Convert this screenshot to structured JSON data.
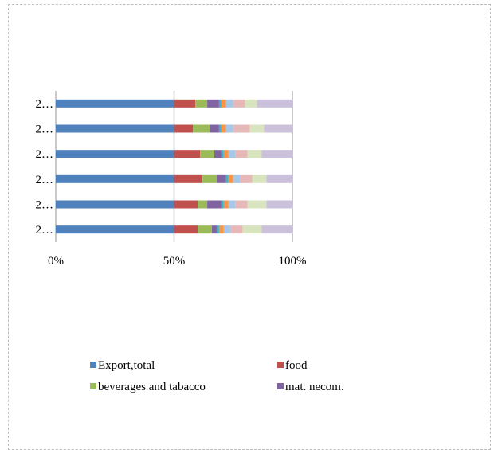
{
  "chart_data": {
    "type": "bar",
    "orientation": "horizontal",
    "stacked": "percent",
    "categories": [
      "2…",
      "2…",
      "2…",
      "2…",
      "2…",
      "2…"
    ],
    "x_ticks": [
      "0%",
      "50%",
      "100%"
    ],
    "xlim": [
      0,
      100
    ],
    "grid": true,
    "legend_position": "bottom",
    "series": [
      {
        "name": "Export,total",
        "color": "#4f81bd",
        "values": [
          50,
          50,
          50,
          50,
          50,
          50
        ]
      },
      {
        "name": "food",
        "color": "#c0504d",
        "values": [
          10,
          10,
          12,
          11,
          8,
          9
        ]
      },
      {
        "name": "beverages and tabacco",
        "color": "#9bbb59",
        "values": [
          6,
          4,
          6,
          6,
          7,
          5
        ]
      },
      {
        "name": "mat. necom.",
        "color": "#8064a2",
        "values": [
          2,
          6,
          4,
          3,
          4,
          5
        ]
      },
      {
        "name": "",
        "color": "#4bacc6",
        "values": [
          1,
          1,
          1,
          1,
          1,
          1
        ]
      },
      {
        "name": "",
        "color": "#f79646",
        "values": [
          2,
          2,
          2,
          2,
          2,
          2
        ]
      },
      {
        "name": "",
        "color": "#a6c7e8",
        "values": [
          3,
          3,
          3,
          3,
          3,
          3
        ]
      },
      {
        "name": "",
        "color": "#e6b9b8",
        "values": [
          5,
          5,
          5,
          5,
          7,
          5
        ]
      },
      {
        "name": "",
        "color": "#d7e4bd",
        "values": [
          8,
          8,
          6,
          6,
          6,
          5
        ]
      },
      {
        "name": "",
        "color": "#ccc1da",
        "values": [
          13,
          11,
          11,
          13,
          12,
          15
        ]
      }
    ]
  }
}
